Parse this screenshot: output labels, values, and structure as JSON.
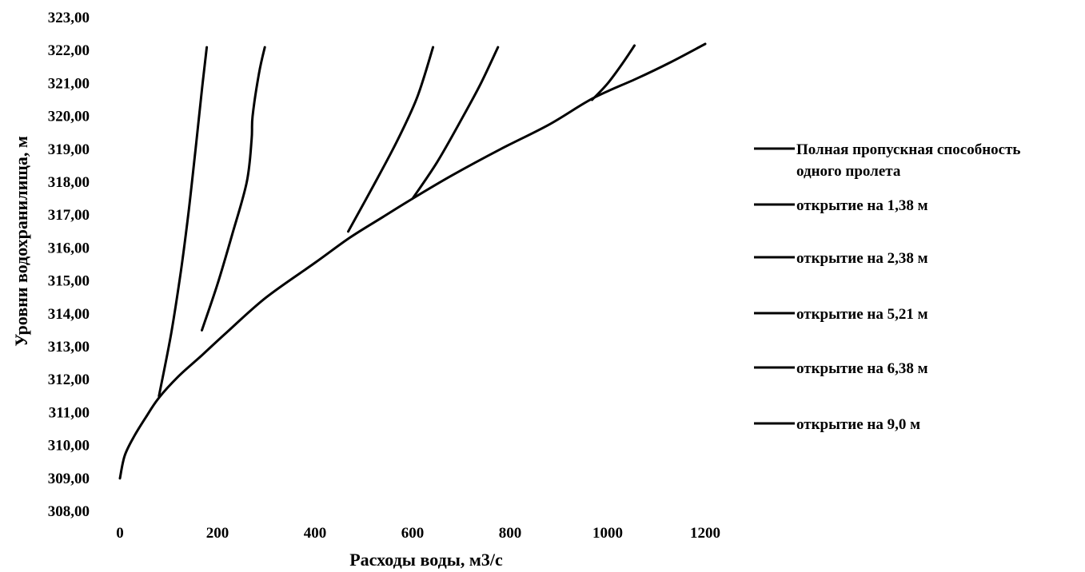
{
  "chart_data": {
    "type": "line",
    "xlabel": "Расходы воды, м3/с",
    "ylabel": "Уровни водохранилища, м",
    "xlim": [
      0,
      1200
    ],
    "ylim": [
      308,
      323
    ],
    "x_ticks": [
      0,
      200,
      400,
      600,
      800,
      1000,
      1200
    ],
    "y_ticks": [
      "308,00",
      "309,00",
      "310,00",
      "311,00",
      "312,00",
      "313,00",
      "314,00",
      "315,00",
      "316,00",
      "317,00",
      "318,00",
      "319,00",
      "320,00",
      "321,00",
      "322,00",
      "323,00"
    ],
    "grid": false,
    "legend_position": "right",
    "line_color": "#000000",
    "series": [
      {
        "name": "Полная пропускная способность одного пролета",
        "name_lines": [
          "Полная пропускная способность",
          "одного пролета"
        ],
        "points": [
          [
            0,
            309.0
          ],
          [
            10,
            309.7
          ],
          [
            30,
            310.3
          ],
          [
            55,
            310.9
          ],
          [
            80,
            311.45
          ],
          [
            120,
            312.1
          ],
          [
            165,
            312.7
          ],
          [
            220,
            313.45
          ],
          [
            300,
            314.5
          ],
          [
            400,
            315.55
          ],
          [
            470,
            316.3
          ],
          [
            540,
            316.95
          ],
          [
            600,
            317.5
          ],
          [
            680,
            318.2
          ],
          [
            780,
            319.0
          ],
          [
            880,
            319.75
          ],
          [
            970,
            320.55
          ],
          [
            1060,
            321.15
          ],
          [
            1130,
            321.65
          ],
          [
            1200,
            322.2
          ]
        ]
      },
      {
        "name": "открытие на 1,38 м",
        "points": [
          [
            80,
            311.5
          ],
          [
            105,
            313.4
          ],
          [
            125,
            315.3
          ],
          [
            140,
            317.0
          ],
          [
            155,
            319.0
          ],
          [
            168,
            320.8
          ],
          [
            178,
            322.1
          ]
        ]
      },
      {
        "name": "открытие на 2,38 м",
        "points": [
          [
            168,
            313.5
          ],
          [
            200,
            314.9
          ],
          [
            230,
            316.4
          ],
          [
            260,
            318.0
          ],
          [
            270,
            319.3
          ],
          [
            272,
            320.0
          ],
          [
            285,
            321.3
          ],
          [
            297,
            322.1
          ]
        ]
      },
      {
        "name": "открытие на 5,21 м",
        "points": [
          [
            468,
            316.5
          ],
          [
            520,
            317.9
          ],
          [
            570,
            319.3
          ],
          [
            610,
            320.6
          ],
          [
            642,
            322.1
          ]
        ]
      },
      {
        "name": "открытие на 6,38 м",
        "points": [
          [
            600,
            317.5
          ],
          [
            650,
            318.6
          ],
          [
            700,
            319.9
          ],
          [
            740,
            321.0
          ],
          [
            775,
            322.1
          ]
        ]
      },
      {
        "name": "открытие на 9,0 м",
        "points": [
          [
            968,
            320.5
          ],
          [
            1000,
            321.0
          ],
          [
            1030,
            321.6
          ],
          [
            1055,
            322.15
          ]
        ]
      }
    ]
  }
}
